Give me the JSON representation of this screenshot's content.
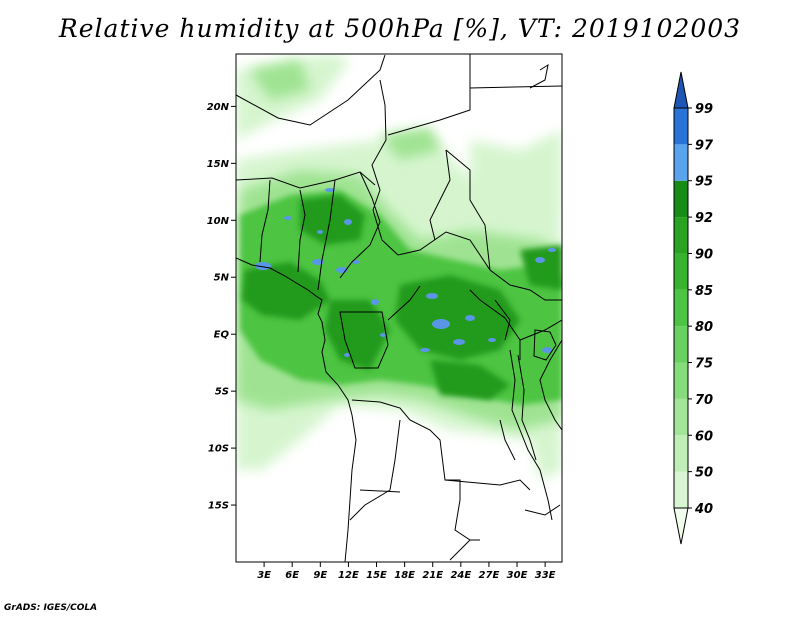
{
  "title": "Relative humidity at 500hPa [%], VT: 2019102003",
  "credit": "GrADS: IGES/COLA",
  "map": {
    "lat_labels": [
      {
        "lat": 20,
        "text": "20N"
      },
      {
        "lat": 15,
        "text": "15N"
      },
      {
        "lat": 10,
        "text": "10N"
      },
      {
        "lat": 5,
        "text": "5N"
      },
      {
        "lat": 0,
        "text": "EQ"
      },
      {
        "lat": -5,
        "text": "5S"
      },
      {
        "lat": -10,
        "text": "10S"
      },
      {
        "lat": -15,
        "text": "15S"
      }
    ],
    "lon_labels": [
      {
        "lon": 3,
        "text": "3E"
      },
      {
        "lon": 6,
        "text": "6E"
      },
      {
        "lon": 9,
        "text": "9E"
      },
      {
        "lon": 12,
        "text": "12E"
      },
      {
        "lon": 15,
        "text": "15E"
      },
      {
        "lon": 18,
        "text": "18E"
      },
      {
        "lon": 21,
        "text": "21E"
      },
      {
        "lon": 24,
        "text": "24E"
      },
      {
        "lon": 27,
        "text": "27E"
      },
      {
        "lon": 30,
        "text": "30E"
      },
      {
        "lon": 33,
        "text": "33E"
      }
    ]
  },
  "colorbar": {
    "levels": [
      "40",
      "50",
      "60",
      "70",
      "75",
      "80",
      "85",
      "90",
      "92",
      "95",
      "97",
      "99"
    ],
    "colors": [
      "#f0fcec",
      "#d9f6d2",
      "#bfeeb6",
      "#a3e598",
      "#86dc7b",
      "#68d15f",
      "#4dc443",
      "#38b330",
      "#2aa323",
      "#198c15",
      "#5aa3ef",
      "#2a74d8",
      "#1d56b4"
    ]
  },
  "colors": {
    "rain_blue": "#5a96e6",
    "border": "#000000",
    "sea_ocean": "#ffffff"
  }
}
